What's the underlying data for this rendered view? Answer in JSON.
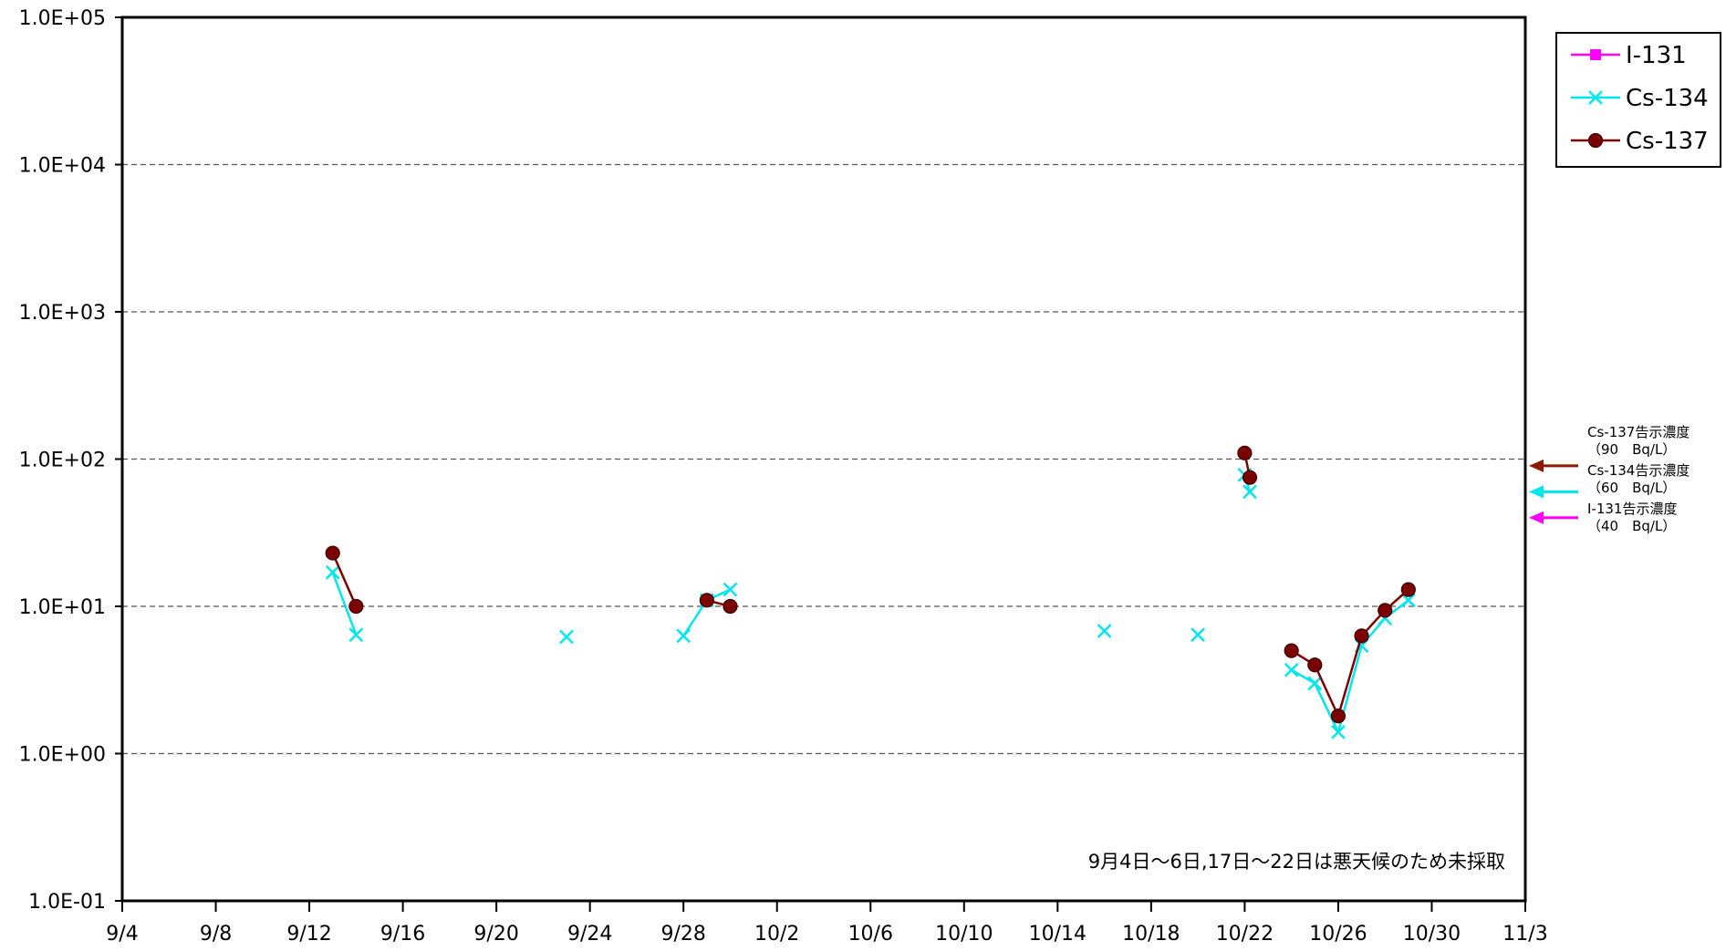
{
  "chart_data": {
    "type": "line",
    "title": "",
    "xlabel": "",
    "ylabel": "",
    "x_range": [
      "9/4",
      "11/3"
    ],
    "y_scale": "log",
    "ylim": [
      0.1,
      100000
    ],
    "grid": "horizontal dashed",
    "legend_position": "top-right",
    "y_ticks": [
      "1.0E-01",
      "1.0E+00",
      "1.0E+01",
      "1.0E+02",
      "1.0E+03",
      "1.0E+04",
      "1.0E+05"
    ],
    "x_ticks": [
      "9/4",
      "9/8",
      "9/12",
      "9/16",
      "9/20",
      "9/24",
      "9/28",
      "10/2",
      "10/6",
      "10/10",
      "10/14",
      "10/18",
      "10/22",
      "10/26",
      "10/30",
      "11/3"
    ],
    "series": [
      {
        "name": "I-131",
        "color": "#ff00ff",
        "marker": "square",
        "points": []
      },
      {
        "name": "Cs-134",
        "color": "#00e5ee",
        "marker": "x",
        "points": [
          {
            "date": "9/13",
            "value": 17
          },
          {
            "date": "9/14",
            "value": 6.4
          },
          {
            "date": "9/23",
            "value": 6.2
          },
          {
            "date": "9/28",
            "value": 6.3
          },
          {
            "date": "9/29",
            "value": 11
          },
          {
            "date": "9/30",
            "value": 13
          },
          {
            "date": "10/16",
            "value": 6.8
          },
          {
            "date": "10/20",
            "value": 6.4
          },
          {
            "date": "10/22",
            "value": 78
          },
          {
            "date": "10/22",
            "value": 60
          },
          {
            "date": "10/24",
            "value": 3.7
          },
          {
            "date": "10/25",
            "value": 3.0
          },
          {
            "date": "10/26",
            "value": 1.4
          },
          {
            "date": "10/27",
            "value": 5.4
          },
          {
            "date": "10/28",
            "value": 8.3
          },
          {
            "date": "10/29",
            "value": 11
          }
        ],
        "segments": [
          [
            0,
            1
          ],
          [
            3,
            4
          ],
          [
            4,
            5
          ],
          [
            8,
            9
          ],
          [
            10,
            11
          ],
          [
            11,
            12
          ],
          [
            12,
            13
          ],
          [
            13,
            14
          ],
          [
            14,
            15
          ]
        ]
      },
      {
        "name": "Cs-137",
        "color": "#7b0000",
        "marker": "circle",
        "points": [
          {
            "date": "9/13",
            "value": 23
          },
          {
            "date": "9/14",
            "value": 10
          },
          {
            "date": "9/29",
            "value": 11
          },
          {
            "date": "9/30",
            "value": 10
          },
          {
            "date": "10/22",
            "value": 110
          },
          {
            "date": "10/22",
            "value": 75
          },
          {
            "date": "10/24",
            "value": 5.0
          },
          {
            "date": "10/25",
            "value": 4.0
          },
          {
            "date": "10/26",
            "value": 1.8
          },
          {
            "date": "10/27",
            "value": 6.3
          },
          {
            "date": "10/28",
            "value": 9.4
          },
          {
            "date": "10/29",
            "value": 13
          }
        ],
        "segments": [
          [
            0,
            1
          ],
          [
            2,
            3
          ],
          [
            4,
            5
          ],
          [
            6,
            7
          ],
          [
            7,
            8
          ],
          [
            8,
            9
          ],
          [
            9,
            10
          ],
          [
            10,
            11
          ]
        ]
      }
    ],
    "reference_lines": [
      {
        "label": "Cs-137告示濃度",
        "sublabel": "（90　Bq/L）",
        "value": 90,
        "color": "#8b1a00"
      },
      {
        "label": "Cs-134告示濃度",
        "sublabel": "（60　Bq/L）",
        "value": 60,
        "color": "#00e5ee"
      },
      {
        "label": "I-131告示濃度",
        "sublabel": "（40　Bq/L）",
        "value": 40,
        "color": "#ff00ff"
      }
    ],
    "note": "9月4日～6日,17日～22日は悪天候のため未採取"
  }
}
